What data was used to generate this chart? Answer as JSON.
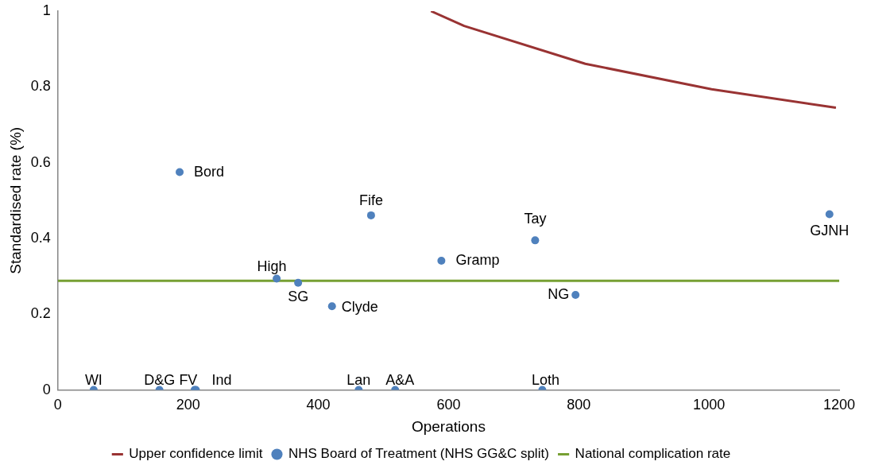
{
  "chart_data": {
    "type": "scatter",
    "xlabel": "Operations",
    "ylabel": "Standardised rate (%)",
    "xlim": [
      0,
      1200
    ],
    "xticks": [
      0,
      200,
      400,
      600,
      800,
      1000,
      1200
    ],
    "ylim": [
      0,
      1
    ],
    "yticks": [
      0,
      0.2,
      0.4,
      0.6,
      0.8,
      1
    ],
    "grid": false,
    "legend": "bottom",
    "marker": "circle",
    "series": [
      {
        "name": "Upper confidence limit",
        "type": "line",
        "color": "#993333",
        "marker": "none",
        "x": [
          573,
          624,
          810,
          1004,
          1195
        ],
        "values": [
          1.0,
          0.961,
          0.861,
          0.794,
          0.745
        ]
      },
      {
        "name": "NHS Board of Treatment (NHS GG&C split)",
        "color": "#4f81bd",
        "x": [
          55,
          156,
          210,
          212,
          462,
          518,
          744,
          187,
          336,
          369,
          421,
          481,
          589,
          733,
          795,
          1185
        ],
        "values": [
          0,
          0,
          0,
          0,
          0,
          0,
          0,
          0.575,
          0.294,
          0.283,
          0.221,
          0.461,
          0.341,
          0.395,
          0.251,
          0.464
        ]
      },
      {
        "name": "National complication rate",
        "type": "line",
        "color": "#77a033",
        "marker": "none",
        "x": [
          0,
          1200
        ],
        "values": [
          0.288,
          0.288
        ]
      }
    ],
    "annotations": [
      {
        "text": "WI",
        "x": 55,
        "y": 0
      },
      {
        "text": "D&G",
        "x": 156,
        "y": 0
      },
      {
        "text": "FV",
        "x": 210,
        "y": 0
      },
      {
        "text": "Ind",
        "x": 212,
        "y": 0
      },
      {
        "text": "Lan",
        "x": 462,
        "y": 0
      },
      {
        "text": "A&A",
        "x": 518,
        "y": 0
      },
      {
        "text": "Loth",
        "x": 744,
        "y": 0
      },
      {
        "text": "Bord",
        "x": 187,
        "y": 0.575
      },
      {
        "text": "High",
        "x": 336,
        "y": 0.294
      },
      {
        "text": "SG",
        "x": 369,
        "y": 0.283
      },
      {
        "text": "Clyde",
        "x": 421,
        "y": 0.221
      },
      {
        "text": "Fife",
        "x": 481,
        "y": 0.461
      },
      {
        "text": "Gramp",
        "x": 589,
        "y": 0.341
      },
      {
        "text": "Tay",
        "x": 733,
        "y": 0.395
      },
      {
        "text": "NG",
        "x": 795,
        "y": 0.251
      },
      {
        "text": "GJNH",
        "x": 1185,
        "y": 0.464
      }
    ]
  }
}
